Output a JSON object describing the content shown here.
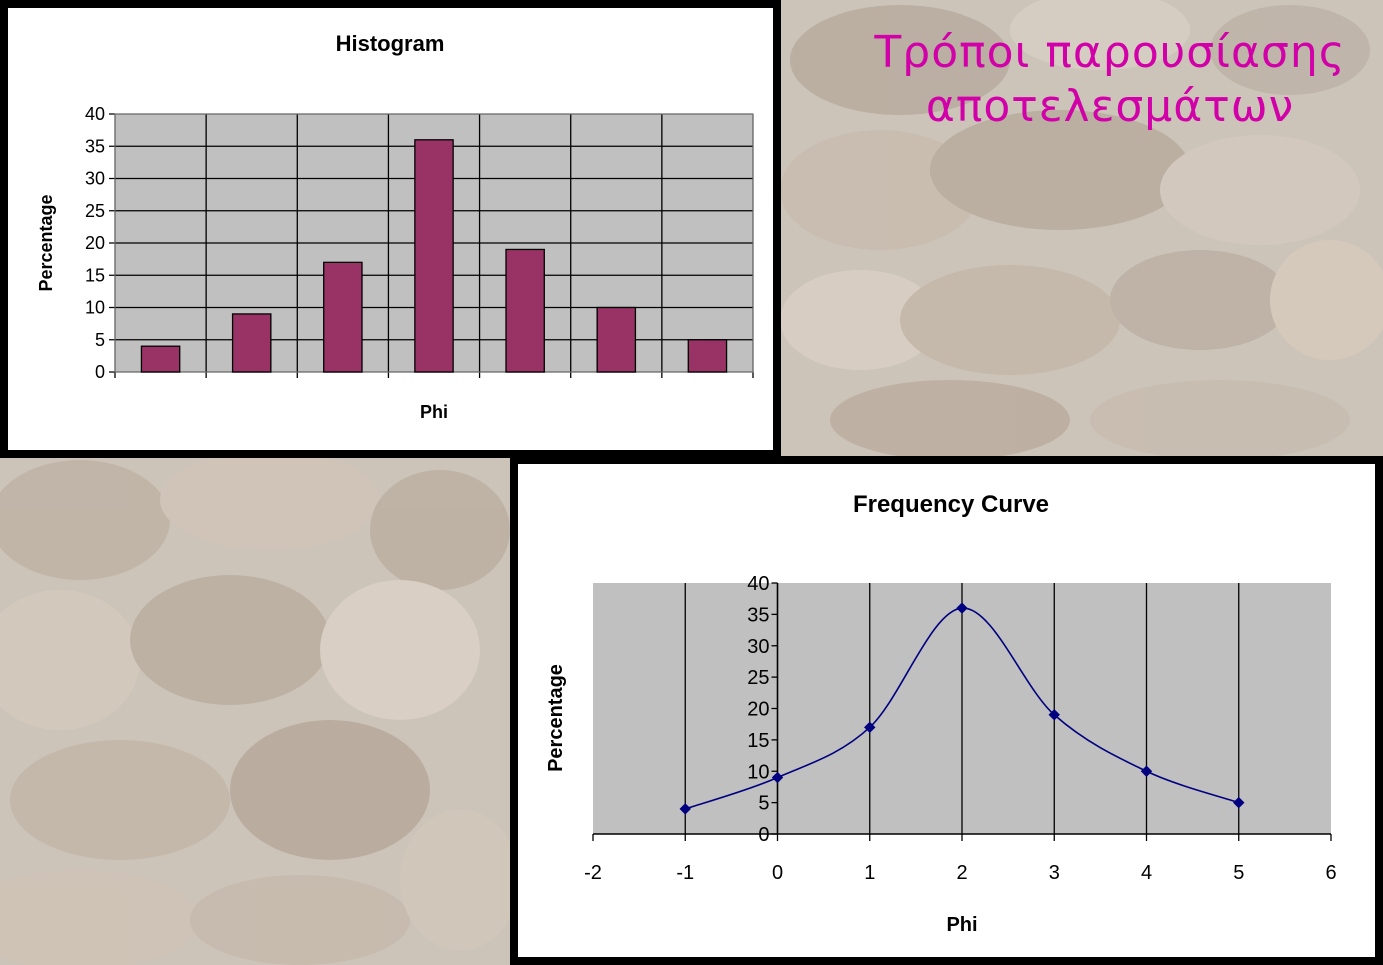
{
  "slide": {
    "title_line1": "Τρόποι παρουσίασης",
    "title_line2": "αποτελεσμάτων",
    "title_color": "#d100a8"
  },
  "chart_data": [
    {
      "type": "bar",
      "title": "Histogram",
      "xlabel": "Phi",
      "ylabel": "Percentage",
      "categories": [
        "",
        "",
        "",
        "",
        "",
        "",
        ""
      ],
      "values": [
        4,
        9,
        17,
        36,
        19,
        10,
        5
      ],
      "ylim": [
        0,
        40
      ],
      "yticks": [
        "0",
        "5",
        "10",
        "15",
        "20",
        "25",
        "30",
        "35",
        "40"
      ],
      "grid": true,
      "bar_color": "#993366",
      "plot_bg": "#c0c0c0"
    },
    {
      "type": "line",
      "title": "Frequency Curve",
      "xlabel": "Phi",
      "ylabel": "Percentage",
      "x": [
        -1,
        0,
        1,
        2,
        3,
        4,
        5
      ],
      "y": [
        4,
        9,
        17,
        36,
        19,
        10,
        5
      ],
      "xlim": [
        -2,
        6
      ],
      "ylim": [
        0,
        40
      ],
      "xticks": [
        "-2",
        "-1",
        "0",
        "1",
        "2",
        "3",
        "4",
        "5",
        "6"
      ],
      "yticks": [
        "0",
        "5",
        "10",
        "15",
        "20",
        "25",
        "30",
        "35",
        "40"
      ],
      "smooth": true,
      "grid": true,
      "line_color": "#000080",
      "plot_bg": "#c0c0c0"
    }
  ]
}
